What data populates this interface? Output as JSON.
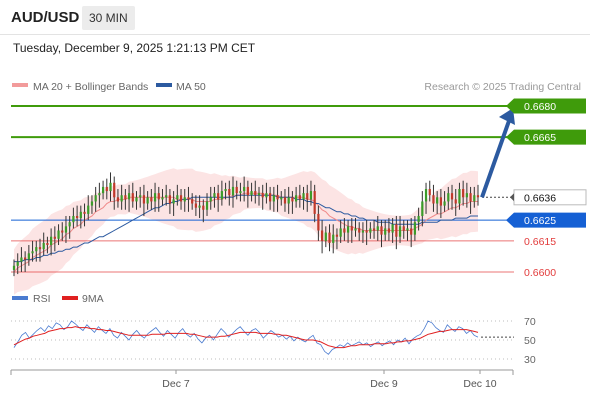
{
  "header": {
    "symbol": "AUD/USD",
    "timeframe": "30 MIN",
    "datetime": "Tuesday, December 9, 2025 1:21:13 PM CET"
  },
  "chart_data": {
    "type": "candlestick",
    "legend": [
      {
        "name": "MA 20 + Bollinger Bands",
        "color": "#f29b9b"
      },
      {
        "name": "MA 50",
        "color": "#2c5aa0"
      }
    ],
    "source": "Research © 2025 Trading Central",
    "price_axis": {
      "ylim": [
        0.6594,
        0.6685
      ]
    },
    "x_ticks": [
      "Dec 7",
      "Dec 9",
      "Dec 10"
    ],
    "last_price": {
      "label": "0.6636",
      "value": 0.6636
    },
    "levels": [
      {
        "label": "0.6680",
        "value": 0.668,
        "color": "#3f9b0b",
        "style": "filled"
      },
      {
        "label": "0.6665",
        "value": 0.6665,
        "color": "#3f9b0b",
        "style": "filled"
      },
      {
        "label": "0.6625",
        "value": 0.6625,
        "color": "#1560d4",
        "style": "filled"
      },
      {
        "label": "0.6615",
        "value": 0.6615,
        "color": "#e23b3b",
        "style": "text"
      },
      {
        "label": "0.6600",
        "value": 0.66,
        "color": "#e23b3b",
        "style": "text"
      }
    ],
    "forecast_arrow": {
      "from": 0.6636,
      "to": 0.668
    },
    "candles_close": [
      0.6603,
      0.6605,
      0.6607,
      0.6606,
      0.6609,
      0.661,
      0.6612,
      0.6611,
      0.6614,
      0.6613,
      0.6617,
      0.6616,
      0.662,
      0.6619,
      0.6622,
      0.6624,
      0.6627,
      0.6626,
      0.6629,
      0.6628,
      0.6632,
      0.6634,
      0.6637,
      0.6638,
      0.6641,
      0.6639,
      0.6643,
      0.6636,
      0.6634,
      0.6637,
      0.6635,
      0.6638,
      0.6634,
      0.6636,
      0.6637,
      0.6633,
      0.6636,
      0.6634,
      0.6638,
      0.6635,
      0.6636,
      0.6637,
      0.6633,
      0.6635,
      0.6637,
      0.6634,
      0.6636,
      0.6635,
      0.6633,
      0.6631,
      0.6632,
      0.663,
      0.6634,
      0.6636,
      0.6638,
      0.6635,
      0.6639,
      0.664,
      0.6637,
      0.6641,
      0.6638,
      0.6639,
      0.6641,
      0.6637,
      0.6639,
      0.6637,
      0.6638,
      0.6636,
      0.6638,
      0.6634,
      0.6637,
      0.6635,
      0.6636,
      0.6633,
      0.6636,
      0.6634,
      0.6637,
      0.6635,
      0.6638,
      0.6635,
      0.6639,
      0.6628,
      0.662,
      0.6615,
      0.6619,
      0.6614,
      0.6618,
      0.6617,
      0.6621,
      0.6619,
      0.6622,
      0.662,
      0.6621,
      0.6619,
      0.662,
      0.6619,
      0.6621,
      0.662,
      0.6622,
      0.6618,
      0.6621,
      0.6619,
      0.6623,
      0.6617,
      0.6622,
      0.662,
      0.6621,
      0.6618,
      0.6624,
      0.6627,
      0.6634,
      0.664,
      0.6637,
      0.6633,
      0.6636,
      0.6632,
      0.6634,
      0.6638,
      0.6635,
      0.6633,
      0.664,
      0.6636,
      0.6638,
      0.6634,
      0.6637,
      0.6636
    ],
    "ma20": [
      0.66,
      0.6602,
      0.6603,
      0.6604,
      0.6605,
      0.6607,
      0.6608,
      0.6609,
      0.661,
      0.6611,
      0.6613,
      0.6614,
      0.6615,
      0.6616,
      0.6618,
      0.6619,
      0.6621,
      0.6622,
      0.6623,
      0.6625,
      0.6626,
      0.6627,
      0.6629,
      0.663,
      0.6631,
      0.6633,
      0.6634,
      0.6634,
      0.6635,
      0.6635,
      0.6635,
      0.6636,
      0.6636,
      0.6636,
      0.6636,
      0.6636,
      0.6636,
      0.6636,
      0.6636,
      0.6636,
      0.6636,
      0.6636,
      0.6636,
      0.6636,
      0.6635,
      0.6635,
      0.6635,
      0.6635,
      0.6635,
      0.6634,
      0.6634,
      0.6634,
      0.6634,
      0.6634,
      0.6635,
      0.6635,
      0.6635,
      0.6636,
      0.6636,
      0.6637,
      0.6637,
      0.6637,
      0.6638,
      0.6638,
      0.6638,
      0.6638,
      0.6638,
      0.6638,
      0.6637,
      0.6637,
      0.6637,
      0.6637,
      0.6636,
      0.6636,
      0.6636,
      0.6636,
      0.6636,
      0.6636,
      0.6636,
      0.6635,
      0.6635,
      0.6634,
      0.6632,
      0.663,
      0.6629,
      0.6627,
      0.6626,
      0.6625,
      0.6624,
      0.6623,
      0.6622,
      0.6622,
      0.6621,
      0.6621,
      0.662,
      0.662,
      0.662,
      0.662,
      0.662,
      0.662,
      0.662,
      0.662,
      0.662,
      0.662,
      0.662,
      0.662,
      0.662,
      0.662,
      0.6621,
      0.6622,
      0.6623,
      0.6625,
      0.6626,
      0.6627,
      0.6628,
      0.6628,
      0.6629,
      0.663,
      0.6631,
      0.6631,
      0.6632,
      0.6633,
      0.6633,
      0.6634,
      0.6634,
      0.6634
    ],
    "ma50": [
      0.6605,
      0.6605,
      0.6605,
      0.6606,
      0.6606,
      0.6606,
      0.6607,
      0.6607,
      0.6608,
      0.6608,
      0.6609,
      0.6609,
      0.661,
      0.661,
      0.6611,
      0.6611,
      0.6612,
      0.6612,
      0.6613,
      0.6614,
      0.6614,
      0.6615,
      0.6616,
      0.6617,
      0.6617,
      0.6618,
      0.6619,
      0.662,
      0.6621,
      0.6622,
      0.6623,
      0.6624,
      0.6625,
      0.6626,
      0.6627,
      0.6628,
      0.6629,
      0.663,
      0.6631,
      0.6631,
      0.6632,
      0.6633,
      0.6633,
      0.6634,
      0.6634,
      0.6635,
      0.6635,
      0.6635,
      0.6636,
      0.6636,
      0.6636,
      0.6636,
      0.6636,
      0.6636,
      0.6636,
      0.6636,
      0.6636,
      0.6636,
      0.6636,
      0.6636,
      0.6637,
      0.6637,
      0.6637,
      0.6637,
      0.6637,
      0.6637,
      0.6637,
      0.6637,
      0.6637,
      0.6637,
      0.6637,
      0.6636,
      0.6636,
      0.6636,
      0.6636,
      0.6636,
      0.6635,
      0.6635,
      0.6635,
      0.6634,
      0.6634,
      0.6633,
      0.6633,
      0.6632,
      0.6631,
      0.6631,
      0.663,
      0.6629,
      0.6629,
      0.6628,
      0.6628,
      0.6627,
      0.6627,
      0.6626,
      0.6626,
      0.6625,
      0.6625,
      0.6625,
      0.6624,
      0.6624,
      0.6624,
      0.6624,
      0.6623,
      0.6623,
      0.6623,
      0.6623,
      0.6623,
      0.6623,
      0.6623,
      0.6623,
      0.6624,
      0.6624,
      0.6624,
      0.6624,
      0.6624,
      0.6625,
      0.6625,
      0.6625,
      0.6625,
      0.6626,
      0.6626,
      0.6626,
      0.6626,
      0.6627,
      0.6627,
      0.6627
    ],
    "band_width": 0.0011,
    "rsi": {
      "legend": [
        {
          "name": "RSI",
          "color": "#4a7bd0"
        },
        {
          "name": "9MA",
          "color": "#e02020"
        }
      ],
      "ticks": [
        70,
        50,
        30
      ],
      "ylim": [
        22,
        82
      ],
      "rsi_values": [
        42,
        48,
        55,
        58,
        52,
        56,
        60,
        63,
        59,
        65,
        62,
        68,
        66,
        61,
        64,
        70,
        67,
        63,
        60,
        66,
        62,
        58,
        64,
        60,
        57,
        62,
        55,
        52,
        58,
        54,
        50,
        56,
        60,
        55,
        52,
        57,
        60,
        63,
        58,
        54,
        60,
        56,
        52,
        58,
        62,
        56,
        53,
        57,
        51,
        47,
        52,
        55,
        50,
        56,
        62,
        58,
        53,
        57,
        61,
        64,
        59,
        55,
        60,
        62,
        58,
        52,
        56,
        60,
        57,
        53,
        55,
        51,
        54,
        49,
        53,
        50,
        48,
        52,
        55,
        47,
        45,
        38,
        35,
        40,
        42,
        45,
        43,
        47,
        44,
        46,
        48,
        45,
        47,
        43,
        46,
        48,
        44,
        47,
        49,
        45,
        50,
        48,
        52,
        46,
        51,
        54,
        56,
        62,
        70,
        68,
        63,
        60,
        58,
        66,
        62,
        59,
        64,
        62,
        57,
        60,
        55,
        53
      ],
      "ma_values": [
        45,
        47,
        49,
        51,
        52,
        54,
        55,
        56,
        57,
        59,
        60,
        61,
        62,
        62,
        63,
        63,
        64,
        63,
        63,
        63,
        62,
        62,
        61,
        61,
        60,
        60,
        59,
        58,
        57,
        56,
        55,
        55,
        55,
        55,
        55,
        55,
        56,
        56,
        56,
        56,
        57,
        57,
        57,
        57,
        57,
        57,
        56,
        56,
        55,
        54,
        53,
        53,
        53,
        53,
        54,
        54,
        55,
        56,
        57,
        58,
        58,
        58,
        58,
        58,
        57,
        57,
        57,
        57,
        56,
        56,
        55,
        55,
        54,
        53,
        52,
        51,
        50,
        50,
        50,
        49,
        48,
        46,
        44,
        43,
        42,
        42,
        42,
        43,
        44,
        44,
        45,
        45,
        45,
        45,
        46,
        46,
        46,
        46,
        47,
        47,
        48,
        48,
        49,
        49,
        50,
        51,
        52,
        54,
        56,
        57,
        58,
        59,
        59,
        60,
        61,
        61,
        61,
        61,
        61,
        60,
        59,
        58
      ]
    }
  }
}
